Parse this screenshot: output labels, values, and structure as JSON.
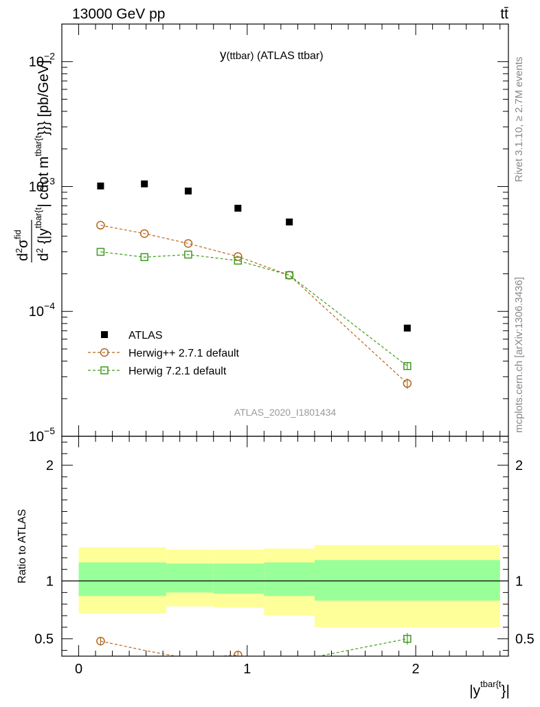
{
  "header": {
    "left_label": "13000 GeV pp",
    "right_label": "tt̄"
  },
  "side_texts": {
    "rivet": "Rivet 3.1.10, ≥ 2.7M events",
    "mcplots": "mcplots.cern.ch [arXiv:1306.3436]"
  },
  "chart_data": [
    {
      "type": "scatter",
      "title_main": "y",
      "title_sub": "(ttbar)",
      "title_rest": " (ATLAS ttbar)",
      "watermark": "ATLAS_2020_I1801434",
      "ylabel": "d²σ^fid / d² {|y^tbar{t}| cdot m^tbar{t}}} [pb/GeV]",
      "ylabel_parts": {
        "num_d": "d",
        "num_exp": "2",
        "num_sigma": "σ",
        "num_fid": "fid",
        "den_d": "d",
        "den_exp": "2",
        "den_text": " {|y",
        "den_sup": "tbar{t",
        "den_rest": "| cdot m",
        "den_sup2": "tbar{t",
        "den_end": "}}} [pb/GeV]"
      },
      "xlim": [
        -0.1,
        2.55
      ],
      "ylim": [
        1e-05,
        0.02
      ],
      "ylog": true,
      "y_ticks": [
        {
          "value": 1e-05,
          "base": "10",
          "exp": "−5"
        },
        {
          "value": 0.0001,
          "base": "10",
          "exp": "−4"
        },
        {
          "value": 0.001,
          "base": "10",
          "exp": "−3"
        },
        {
          "value": 0.01,
          "base": "10",
          "exp": "−2"
        }
      ],
      "x": [
        0.13,
        0.39,
        0.65,
        0.945,
        1.25,
        1.95
      ],
      "series": [
        {
          "name": "ATLAS",
          "marker": "filled-square",
          "color": "#000000",
          "values": [
            0.00101,
            0.00105,
            0.00092,
            0.00067,
            0.00052,
            7.35e-05
          ]
        },
        {
          "name": "Herwig++ 2.7.1 default",
          "marker": "open-circle",
          "color": "#b5651d",
          "values": [
            0.00049,
            0.00042,
            0.00035,
            0.000275,
            0.000195,
            2.65e-05
          ],
          "err": [
            0,
            0,
            0,
            0,
            0,
            2.5e-06
          ]
        },
        {
          "name": "Herwig 7.2.1 default",
          "marker": "open-square",
          "color": "#3d9a1b",
          "values": [
            0.0003,
            0.000272,
            0.000285,
            0.000255,
            0.000195,
            3.65e-05
          ],
          "err": [
            0,
            0,
            0,
            0,
            0,
            2e-06
          ]
        }
      ],
      "legend_placement": "lower-left"
    },
    {
      "type": "ratio",
      "ylabel": "Ratio to ATLAS",
      "xlabel_main": "|y",
      "xlabel_sup": "tbar{t",
      "xlabel_end": "}|",
      "xlim": [
        -0.1,
        2.55
      ],
      "ylim": [
        0.35,
        2.25
      ],
      "x_ticks": [
        {
          "value": 0,
          "label": "0"
        },
        {
          "value": 1,
          "label": "1"
        },
        {
          "value": 2,
          "label": "2"
        }
      ],
      "y_ticks": [
        {
          "value": 0.5,
          "label": "0.5"
        },
        {
          "value": 1,
          "label": "1"
        },
        {
          "value": 2,
          "label": "2"
        }
      ],
      "bands": [
        {
          "x0": 0.0,
          "x1": 0.52,
          "yellow": [
            0.72,
            1.29
          ],
          "green": [
            0.87,
            1.16
          ]
        },
        {
          "x0": 0.52,
          "x1": 0.8,
          "yellow": [
            0.78,
            1.27
          ],
          "green": [
            0.9,
            1.15
          ]
        },
        {
          "x0": 0.8,
          "x1": 1.1,
          "yellow": [
            0.77,
            1.27
          ],
          "green": [
            0.89,
            1.15
          ]
        },
        {
          "x0": 1.1,
          "x1": 1.4,
          "yellow": [
            0.7,
            1.28
          ],
          "green": [
            0.87,
            1.16
          ]
        },
        {
          "x0": 1.4,
          "x1": 2.5,
          "yellow": [
            0.6,
            1.31
          ],
          "green": [
            0.83,
            1.18
          ]
        }
      ],
      "band_colors": {
        "yellow": "#ffff99",
        "green": "#99ff99"
      },
      "series": [
        {
          "name": "Herwig++ 2.7.1 default",
          "color": "#b5651d",
          "marker": "open-circle",
          "points": [
            {
              "x": 0.13,
              "y": 0.48,
              "err": 0.03
            },
            {
              "x": 0.945,
              "y": 0.36,
              "err": 0.03
            }
          ],
          "line": [
            [
              0.13,
              0.48
            ],
            [
              0.39,
              0.4
            ],
            [
              0.65,
              0.33
            ],
            [
              0.945,
              0.36
            ]
          ]
        },
        {
          "name": "Herwig 7.2.1 default",
          "color": "#3d9a1b",
          "marker": "open-square",
          "points": [
            {
              "x": 1.95,
              "y": 0.5,
              "err": 0.05
            }
          ],
          "line": [
            [
              1.25,
              0.3
            ],
            [
              1.95,
              0.5
            ]
          ]
        }
      ]
    }
  ]
}
